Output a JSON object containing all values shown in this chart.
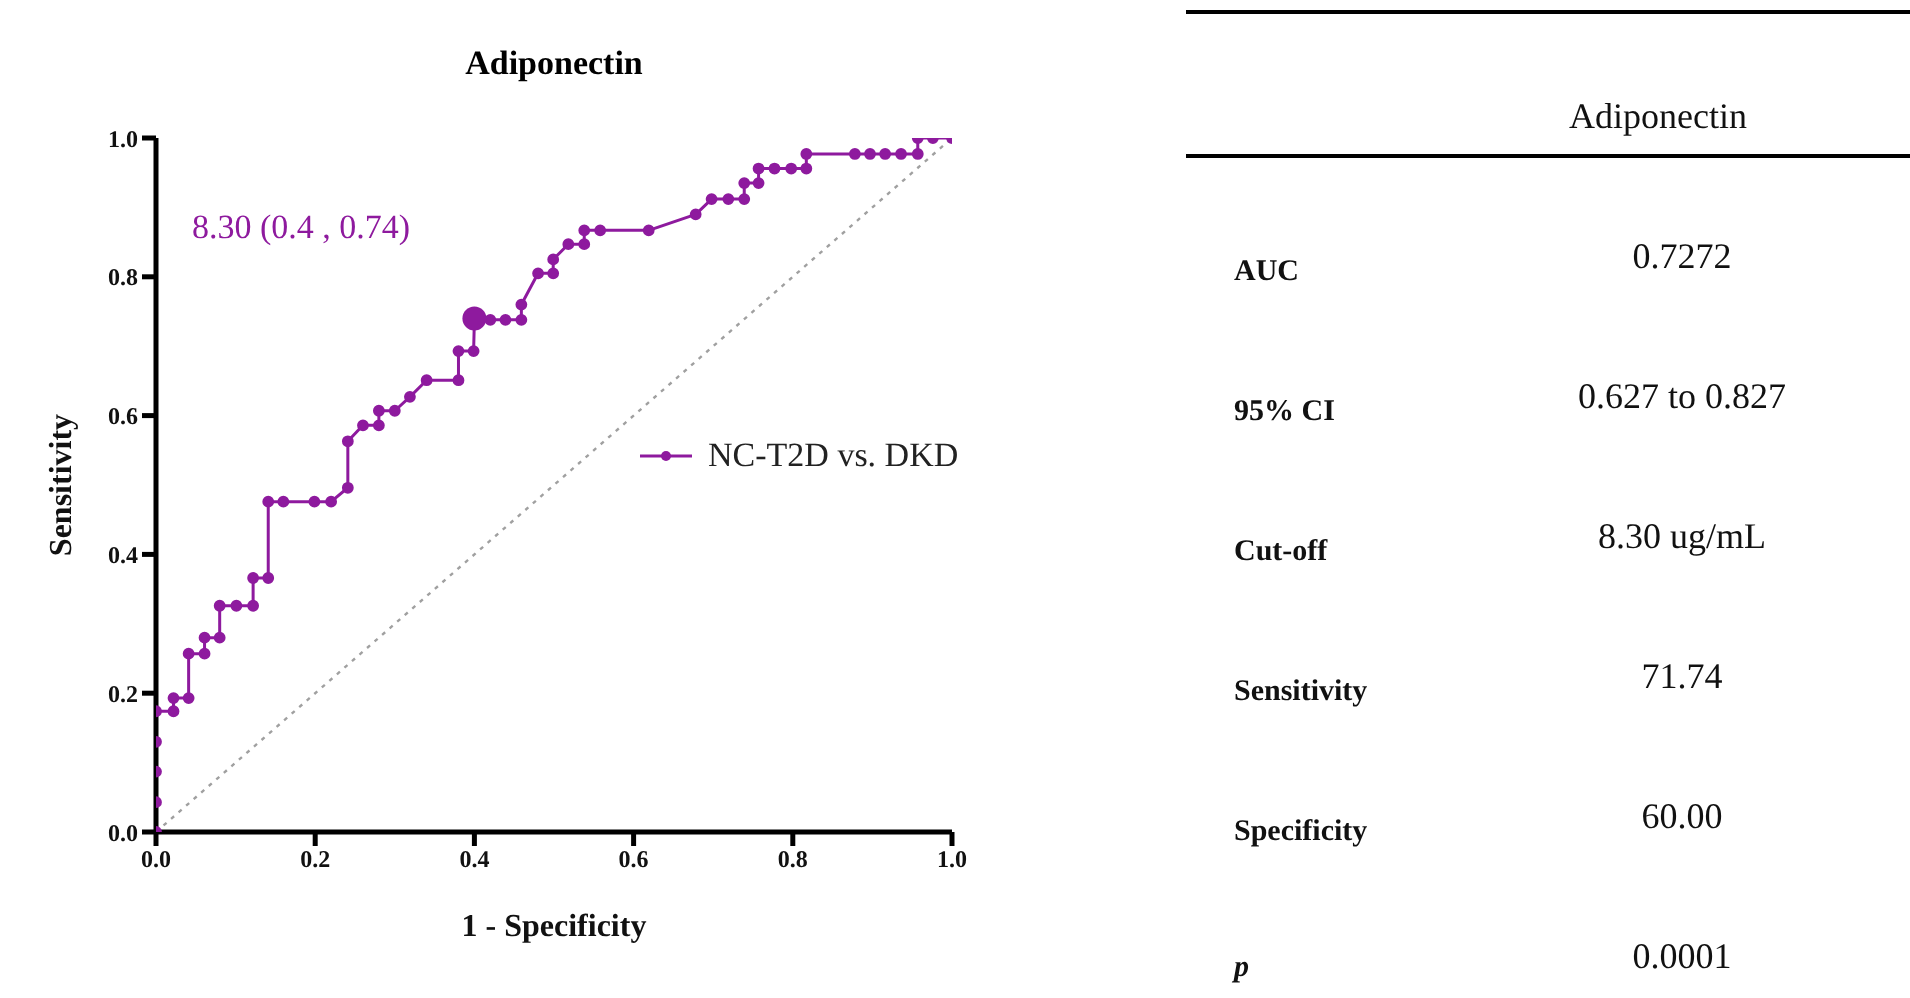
{
  "chart_data": [
    {
      "type": "line",
      "title": "Adiponectin",
      "xlabel": "1 - Specificity",
      "ylabel": "Sensitivity",
      "xlim": [
        0,
        1
      ],
      "ylim": [
        0,
        1
      ],
      "xticks": [
        {
          "value": 0,
          "label": "0.0"
        },
        {
          "value": 0.2,
          "label": "0.2"
        },
        {
          "value": 0.4,
          "label": "0.4"
        },
        {
          "value": 0.6,
          "label": "0.6"
        },
        {
          "value": 0.8,
          "label": "0.8"
        },
        {
          "value": 1,
          "label": "1.0"
        }
      ],
      "yticks": [
        {
          "value": 0,
          "label": "0.0"
        },
        {
          "value": 0.2,
          "label": "0.2"
        },
        {
          "value": 0.4,
          "label": "0.4"
        },
        {
          "value": 0.6,
          "label": "0.6"
        },
        {
          "value": 0.8,
          "label": "0.8"
        },
        {
          "value": 1,
          "label": "1.0"
        }
      ],
      "grid": false,
      "legend": "right",
      "annotations": [
        "8.30 (0.4 , 0.74)"
      ],
      "series": [
        {
          "type": "line",
          "name": "NC-T2D vs. DKD",
          "color": "#8e1a9e",
          "marker": "circle",
          "line_style": "solid",
          "x": [
            0,
            0,
            0,
            0,
            0,
            0.022,
            0.022,
            0.041,
            0.041,
            0.061,
            0.061,
            0.08,
            0.08,
            0.101,
            0.122,
            0.122,
            0.141,
            0.141,
            0.16,
            0.199,
            0.22,
            0.241,
            0.241,
            0.26,
            0.28,
            0.28,
            0.3,
            0.319,
            0.34,
            0.38,
            0.38,
            0.399,
            0.4,
            0.42,
            0.439,
            0.459,
            0.459,
            0.48,
            0.499,
            0.499,
            0.518,
            0.538,
            0.538,
            0.558,
            0.619,
            0.678,
            0.698,
            0.719,
            0.739,
            0.739,
            0.757,
            0.757,
            0.777,
            0.798,
            0.817,
            0.817,
            0.878,
            0.897,
            0.916,
            0.936,
            0.957,
            0.957,
            0.976,
            1.0
          ],
          "values": [
            0,
            0.043,
            0.087,
            0.13,
            0.174,
            0.174,
            0.193,
            0.193,
            0.257,
            0.257,
            0.28,
            0.28,
            0.326,
            0.326,
            0.326,
            0.366,
            0.366,
            0.476,
            0.476,
            0.476,
            0.476,
            0.496,
            0.563,
            0.586,
            0.586,
            0.607,
            0.607,
            0.627,
            0.651,
            0.651,
            0.693,
            0.693,
            0.738,
            0.738,
            0.738,
            0.738,
            0.76,
            0.805,
            0.805,
            0.825,
            0.847,
            0.847,
            0.867,
            0.867,
            0.867,
            0.89,
            0.912,
            0.912,
            0.912,
            0.935,
            0.935,
            0.956,
            0.956,
            0.956,
            0.956,
            0.977,
            0.977,
            0.977,
            0.977,
            0.977,
            0.977,
            1.0,
            1.0,
            1.0
          ]
        },
        {
          "type": "scatter",
          "color": "#8e1a9e",
          "marker": "circle",
          "x": [
            0.4
          ],
          "values": [
            0.74
          ]
        },
        {
          "type": "line",
          "color": "#a0a0a0",
          "marker": "none",
          "line_style": "dotted",
          "x": [
            0,
            1
          ],
          "values": [
            0,
            1
          ]
        }
      ]
    },
    {
      "type": "other",
      "title": "Adiponectin",
      "categories": [
        "AUC",
        "95% CI",
        "Cut-off",
        "Sensitivity",
        "Specificity",
        "p"
      ],
      "value_labels": [
        "0.7272",
        "0.627 to 0.827",
        "8.30 ug/mL",
        "71.74",
        "60.00",
        "0.0001"
      ]
    }
  ]
}
